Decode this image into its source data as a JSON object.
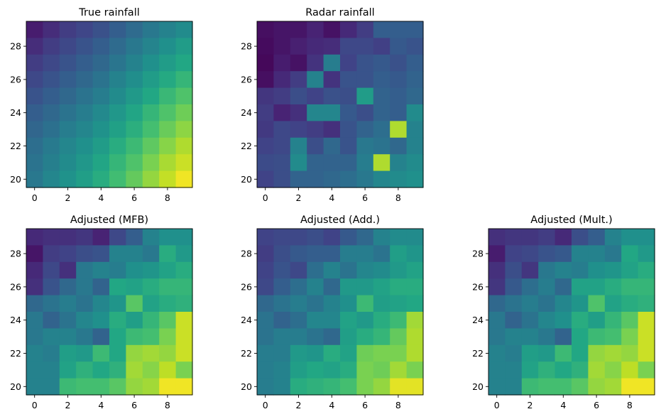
{
  "chart_data": [
    {
      "type": "heatmap",
      "title": "True rainfall",
      "xlim": [
        -0.5,
        9.5
      ],
      "ylim": [
        19.5,
        29.5
      ],
      "xticks": [
        "0",
        "2",
        "4",
        "6",
        "8"
      ],
      "yticks": [
        "20",
        "22",
        "24",
        "26",
        "28"
      ],
      "colormap": "viridis",
      "vmin": 0,
      "vmax": 1,
      "rows_y": [
        29,
        28,
        27,
        26,
        25,
        24,
        23,
        22,
        21,
        20
      ],
      "grid": [
        [
          0.08,
          0.13,
          0.18,
          0.21,
          0.25,
          0.3,
          0.35,
          0.4,
          0.44,
          0.48
        ],
        [
          0.13,
          0.18,
          0.22,
          0.26,
          0.3,
          0.35,
          0.4,
          0.45,
          0.5,
          0.55
        ],
        [
          0.18,
          0.22,
          0.26,
          0.3,
          0.34,
          0.39,
          0.44,
          0.5,
          0.55,
          0.6
        ],
        [
          0.22,
          0.26,
          0.3,
          0.34,
          0.38,
          0.44,
          0.49,
          0.55,
          0.61,
          0.66
        ],
        [
          0.26,
          0.3,
          0.34,
          0.38,
          0.42,
          0.48,
          0.54,
          0.6,
          0.67,
          0.72
        ],
        [
          0.3,
          0.34,
          0.38,
          0.42,
          0.47,
          0.53,
          0.59,
          0.66,
          0.72,
          0.78
        ],
        [
          0.33,
          0.37,
          0.42,
          0.46,
          0.51,
          0.57,
          0.63,
          0.7,
          0.77,
          0.83
        ],
        [
          0.36,
          0.41,
          0.46,
          0.5,
          0.55,
          0.62,
          0.68,
          0.75,
          0.82,
          0.88
        ],
        [
          0.38,
          0.43,
          0.48,
          0.53,
          0.59,
          0.66,
          0.72,
          0.8,
          0.87,
          0.92
        ],
        [
          0.4,
          0.46,
          0.51,
          0.56,
          0.62,
          0.69,
          0.76,
          0.84,
          0.91,
          0.98
        ]
      ]
    },
    {
      "type": "heatmap",
      "title": "Radar rainfall",
      "xlim": [
        -0.5,
        9.5
      ],
      "ylim": [
        19.5,
        29.5
      ],
      "xticks": [
        "0",
        "2",
        "4",
        "6",
        "8"
      ],
      "yticks": [
        "20",
        "22",
        "24",
        "26",
        "28"
      ],
      "colormap": "viridis",
      "vmin": 0,
      "vmax": 1,
      "rows_y": [
        29,
        28,
        27,
        26,
        25,
        24,
        23,
        22,
        21,
        20
      ],
      "grid": [
        [
          0.04,
          0.06,
          0.06,
          0.1,
          0.05,
          0.12,
          0.18,
          0.3,
          0.3,
          0.3
        ],
        [
          0.03,
          0.06,
          0.09,
          0.12,
          0.13,
          0.22,
          0.22,
          0.19,
          0.28,
          0.26
        ],
        [
          0.02,
          0.08,
          0.05,
          0.15,
          0.42,
          0.2,
          0.26,
          0.28,
          0.25,
          0.3
        ],
        [
          0.04,
          0.12,
          0.18,
          0.44,
          0.15,
          0.26,
          0.26,
          0.3,
          0.28,
          0.32
        ],
        [
          0.16,
          0.18,
          0.24,
          0.2,
          0.25,
          0.24,
          0.55,
          0.32,
          0.3,
          0.34
        ],
        [
          0.18,
          0.1,
          0.14,
          0.46,
          0.46,
          0.28,
          0.24,
          0.32,
          0.3,
          0.48
        ],
        [
          0.17,
          0.22,
          0.2,
          0.18,
          0.14,
          0.26,
          0.32,
          0.36,
          0.88,
          0.44
        ],
        [
          0.2,
          0.22,
          0.44,
          0.24,
          0.34,
          0.26,
          0.4,
          0.38,
          0.34,
          0.44
        ],
        [
          0.23,
          0.24,
          0.48,
          0.32,
          0.32,
          0.32,
          0.42,
          0.88,
          0.44,
          0.48
        ],
        [
          0.2,
          0.24,
          0.32,
          0.32,
          0.34,
          0.36,
          0.4,
          0.46,
          0.48,
          0.5
        ]
      ]
    },
    {
      "type": "heatmap",
      "title": "Adjusted (MFB)",
      "xlim": [
        -0.5,
        9.5
      ],
      "ylim": [
        19.5,
        29.5
      ],
      "xticks": [
        "0",
        "2",
        "4",
        "6",
        "8"
      ],
      "yticks": [
        "20",
        "22",
        "24",
        "26",
        "28"
      ],
      "colormap": "viridis",
      "vmin": 0,
      "vmax": 1,
      "rows_y": [
        29,
        28,
        27,
        26,
        25,
        24,
        23,
        22,
        21,
        20
      ],
      "grid": [
        [
          0.12,
          0.14,
          0.14,
          0.16,
          0.1,
          0.22,
          0.3,
          0.44,
          0.5,
          0.5
        ],
        [
          0.06,
          0.18,
          0.2,
          0.24,
          0.26,
          0.44,
          0.44,
          0.4,
          0.62,
          0.54
        ],
        [
          0.12,
          0.22,
          0.14,
          0.4,
          0.44,
          0.42,
          0.5,
          0.52,
          0.58,
          0.62
        ],
        [
          0.14,
          0.26,
          0.34,
          0.4,
          0.32,
          0.6,
          0.58,
          0.62,
          0.66,
          0.66
        ],
        [
          0.34,
          0.38,
          0.42,
          0.38,
          0.46,
          0.52,
          0.74,
          0.58,
          0.62,
          0.64
        ],
        [
          0.4,
          0.32,
          0.38,
          0.46,
          0.5,
          0.62,
          0.56,
          0.66,
          0.74,
          0.92
        ],
        [
          0.4,
          0.44,
          0.44,
          0.4,
          0.32,
          0.6,
          0.68,
          0.7,
          0.8,
          0.92
        ],
        [
          0.44,
          0.42,
          0.56,
          0.54,
          0.68,
          0.6,
          0.84,
          0.86,
          0.84,
          0.92
        ],
        [
          0.44,
          0.44,
          0.58,
          0.64,
          0.6,
          0.64,
          0.86,
          0.82,
          0.9,
          0.8
        ],
        [
          0.44,
          0.44,
          0.68,
          0.7,
          0.7,
          0.74,
          0.84,
          0.86,
          0.98,
          0.98
        ]
      ]
    },
    {
      "type": "heatmap",
      "title": "Adjusted (Add.)",
      "xlim": [
        -0.5,
        9.5
      ],
      "ylim": [
        19.5,
        29.5
      ],
      "xticks": [
        "0",
        "2",
        "4",
        "6",
        "8"
      ],
      "yticks": [
        "20",
        "22",
        "24",
        "26",
        "28"
      ],
      "colormap": "viridis",
      "vmin": 0,
      "vmax": 1,
      "rows_y": [
        29,
        28,
        27,
        26,
        25,
        24,
        23,
        22,
        21,
        20
      ],
      "grid": [
        [
          0.2,
          0.22,
          0.22,
          0.24,
          0.2,
          0.28,
          0.34,
          0.44,
          0.48,
          0.48
        ],
        [
          0.18,
          0.24,
          0.28,
          0.3,
          0.3,
          0.42,
          0.42,
          0.38,
          0.56,
          0.52
        ],
        [
          0.2,
          0.26,
          0.22,
          0.36,
          0.44,
          0.38,
          0.46,
          0.48,
          0.54,
          0.58
        ],
        [
          0.22,
          0.3,
          0.36,
          0.44,
          0.34,
          0.54,
          0.54,
          0.58,
          0.62,
          0.62
        ],
        [
          0.34,
          0.38,
          0.42,
          0.38,
          0.44,
          0.5,
          0.68,
          0.56,
          0.58,
          0.6
        ],
        [
          0.38,
          0.32,
          0.36,
          0.46,
          0.46,
          0.58,
          0.54,
          0.62,
          0.68,
          0.86
        ],
        [
          0.38,
          0.42,
          0.42,
          0.38,
          0.34,
          0.56,
          0.62,
          0.66,
          0.76,
          0.88
        ],
        [
          0.42,
          0.42,
          0.54,
          0.52,
          0.62,
          0.58,
          0.78,
          0.8,
          0.8,
          0.88
        ],
        [
          0.42,
          0.44,
          0.56,
          0.6,
          0.58,
          0.62,
          0.8,
          0.78,
          0.86,
          0.8
        ],
        [
          0.42,
          0.44,
          0.62,
          0.64,
          0.66,
          0.7,
          0.8,
          0.84,
          0.96,
          0.96
        ]
      ]
    },
    {
      "type": "heatmap",
      "title": "Adjusted (Mult.)",
      "xlim": [
        -0.5,
        9.5
      ],
      "ylim": [
        19.5,
        29.5
      ],
      "xticks": [
        "0",
        "2",
        "4",
        "6",
        "8"
      ],
      "yticks": [
        "20",
        "22",
        "24",
        "26",
        "28"
      ],
      "colormap": "viridis",
      "vmin": 0,
      "vmax": 1,
      "rows_y": [
        29,
        28,
        27,
        26,
        25,
        24,
        23,
        22,
        21,
        20
      ],
      "grid": [
        [
          0.14,
          0.16,
          0.16,
          0.18,
          0.12,
          0.24,
          0.3,
          0.44,
          0.5,
          0.5
        ],
        [
          0.08,
          0.2,
          0.22,
          0.26,
          0.28,
          0.44,
          0.44,
          0.4,
          0.6,
          0.54
        ],
        [
          0.14,
          0.24,
          0.16,
          0.4,
          0.44,
          0.42,
          0.5,
          0.52,
          0.58,
          0.62
        ],
        [
          0.16,
          0.28,
          0.36,
          0.42,
          0.34,
          0.58,
          0.58,
          0.62,
          0.66,
          0.66
        ],
        [
          0.34,
          0.38,
          0.42,
          0.38,
          0.46,
          0.52,
          0.72,
          0.58,
          0.62,
          0.64
        ],
        [
          0.4,
          0.32,
          0.38,
          0.46,
          0.5,
          0.62,
          0.56,
          0.66,
          0.74,
          0.92
        ],
        [
          0.4,
          0.44,
          0.44,
          0.4,
          0.32,
          0.6,
          0.68,
          0.7,
          0.8,
          0.92
        ],
        [
          0.44,
          0.42,
          0.56,
          0.54,
          0.68,
          0.6,
          0.84,
          0.86,
          0.84,
          0.92
        ],
        [
          0.44,
          0.44,
          0.58,
          0.64,
          0.6,
          0.64,
          0.86,
          0.82,
          0.9,
          0.8
        ],
        [
          0.44,
          0.44,
          0.68,
          0.7,
          0.7,
          0.74,
          0.84,
          0.86,
          0.98,
          0.98
        ]
      ]
    }
  ]
}
